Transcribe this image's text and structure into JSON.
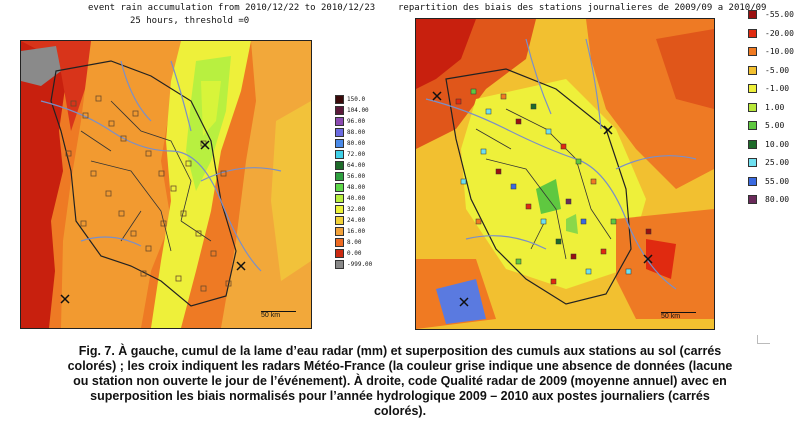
{
  "left_panel": {
    "title_line1": "event rain accumulation from 2010/12/22 to 2010/12/23",
    "title_line2": "25 hours, threshold =0",
    "scale_label": "50 km",
    "legend": [
      {
        "label": "150.0",
        "color": "#3a0a0a"
      },
      {
        "label": "104.00",
        "color": "#5b1a3a"
      },
      {
        "label": "96.00",
        "color": "#8a4ab0"
      },
      {
        "label": "88.00",
        "color": "#6b6be0"
      },
      {
        "label": "80.00",
        "color": "#4a8ae8"
      },
      {
        "label": "72.00",
        "color": "#3fd0e8"
      },
      {
        "label": "64.00",
        "color": "#1e6b2a"
      },
      {
        "label": "56.00",
        "color": "#2fa040"
      },
      {
        "label": "48.00",
        "color": "#5fd84a"
      },
      {
        "label": "40.00",
        "color": "#b8f040"
      },
      {
        "label": "32.00",
        "color": "#ecf23a"
      },
      {
        "label": "24.00",
        "color": "#f2d23a"
      },
      {
        "label": "16.00",
        "color": "#f2a23a"
      },
      {
        "label": "8.00",
        "color": "#ee6a22"
      },
      {
        "label": "0.00",
        "color": "#cc2a12"
      },
      {
        "label": "-999.00",
        "color": "#888888"
      }
    ]
  },
  "right_panel": {
    "title": "repartition des biais des stations journalieres de 2009/09 a 2010/09",
    "scale_label": "50 km",
    "legend": [
      {
        "label": "-55.00",
        "color": "#9a1010"
      },
      {
        "label": "-20.00",
        "color": "#e02a10"
      },
      {
        "label": "-10.00",
        "color": "#f07a22"
      },
      {
        "label": "-5.00",
        "color": "#f2c030"
      },
      {
        "label": "-1.00",
        "color": "#eef03a"
      },
      {
        "label": "1.00",
        "color": "#b8e83a"
      },
      {
        "label": "5.00",
        "color": "#5fc840"
      },
      {
        "label": "10.00",
        "color": "#1e6b2a"
      },
      {
        "label": "25.00",
        "color": "#6fe0f0"
      },
      {
        "label": "55.00",
        "color": "#3a6ae0"
      },
      {
        "label": "80.00",
        "color": "#6a2a5a"
      }
    ]
  },
  "caption": {
    "line1": "Fig. 7. À gauche, cumul de la lame d’eau radar (mm) et superposition des cumuls aux stations au sol (carrés",
    "line2": "colorés) ; les croix indiquent les radars Météo-France (la couleur grise indique une absence de données (lacune",
    "line3": "ou station non ouverte le jour de l’événement). À  droite, code Qualité radar de 2009 (moyenne annuel) avec en",
    "line4": "superposition les biais normalisés pour l’année hydrologique 2009 – 2010 aux postes journaliers (carrés",
    "line5": "colorés)."
  }
}
